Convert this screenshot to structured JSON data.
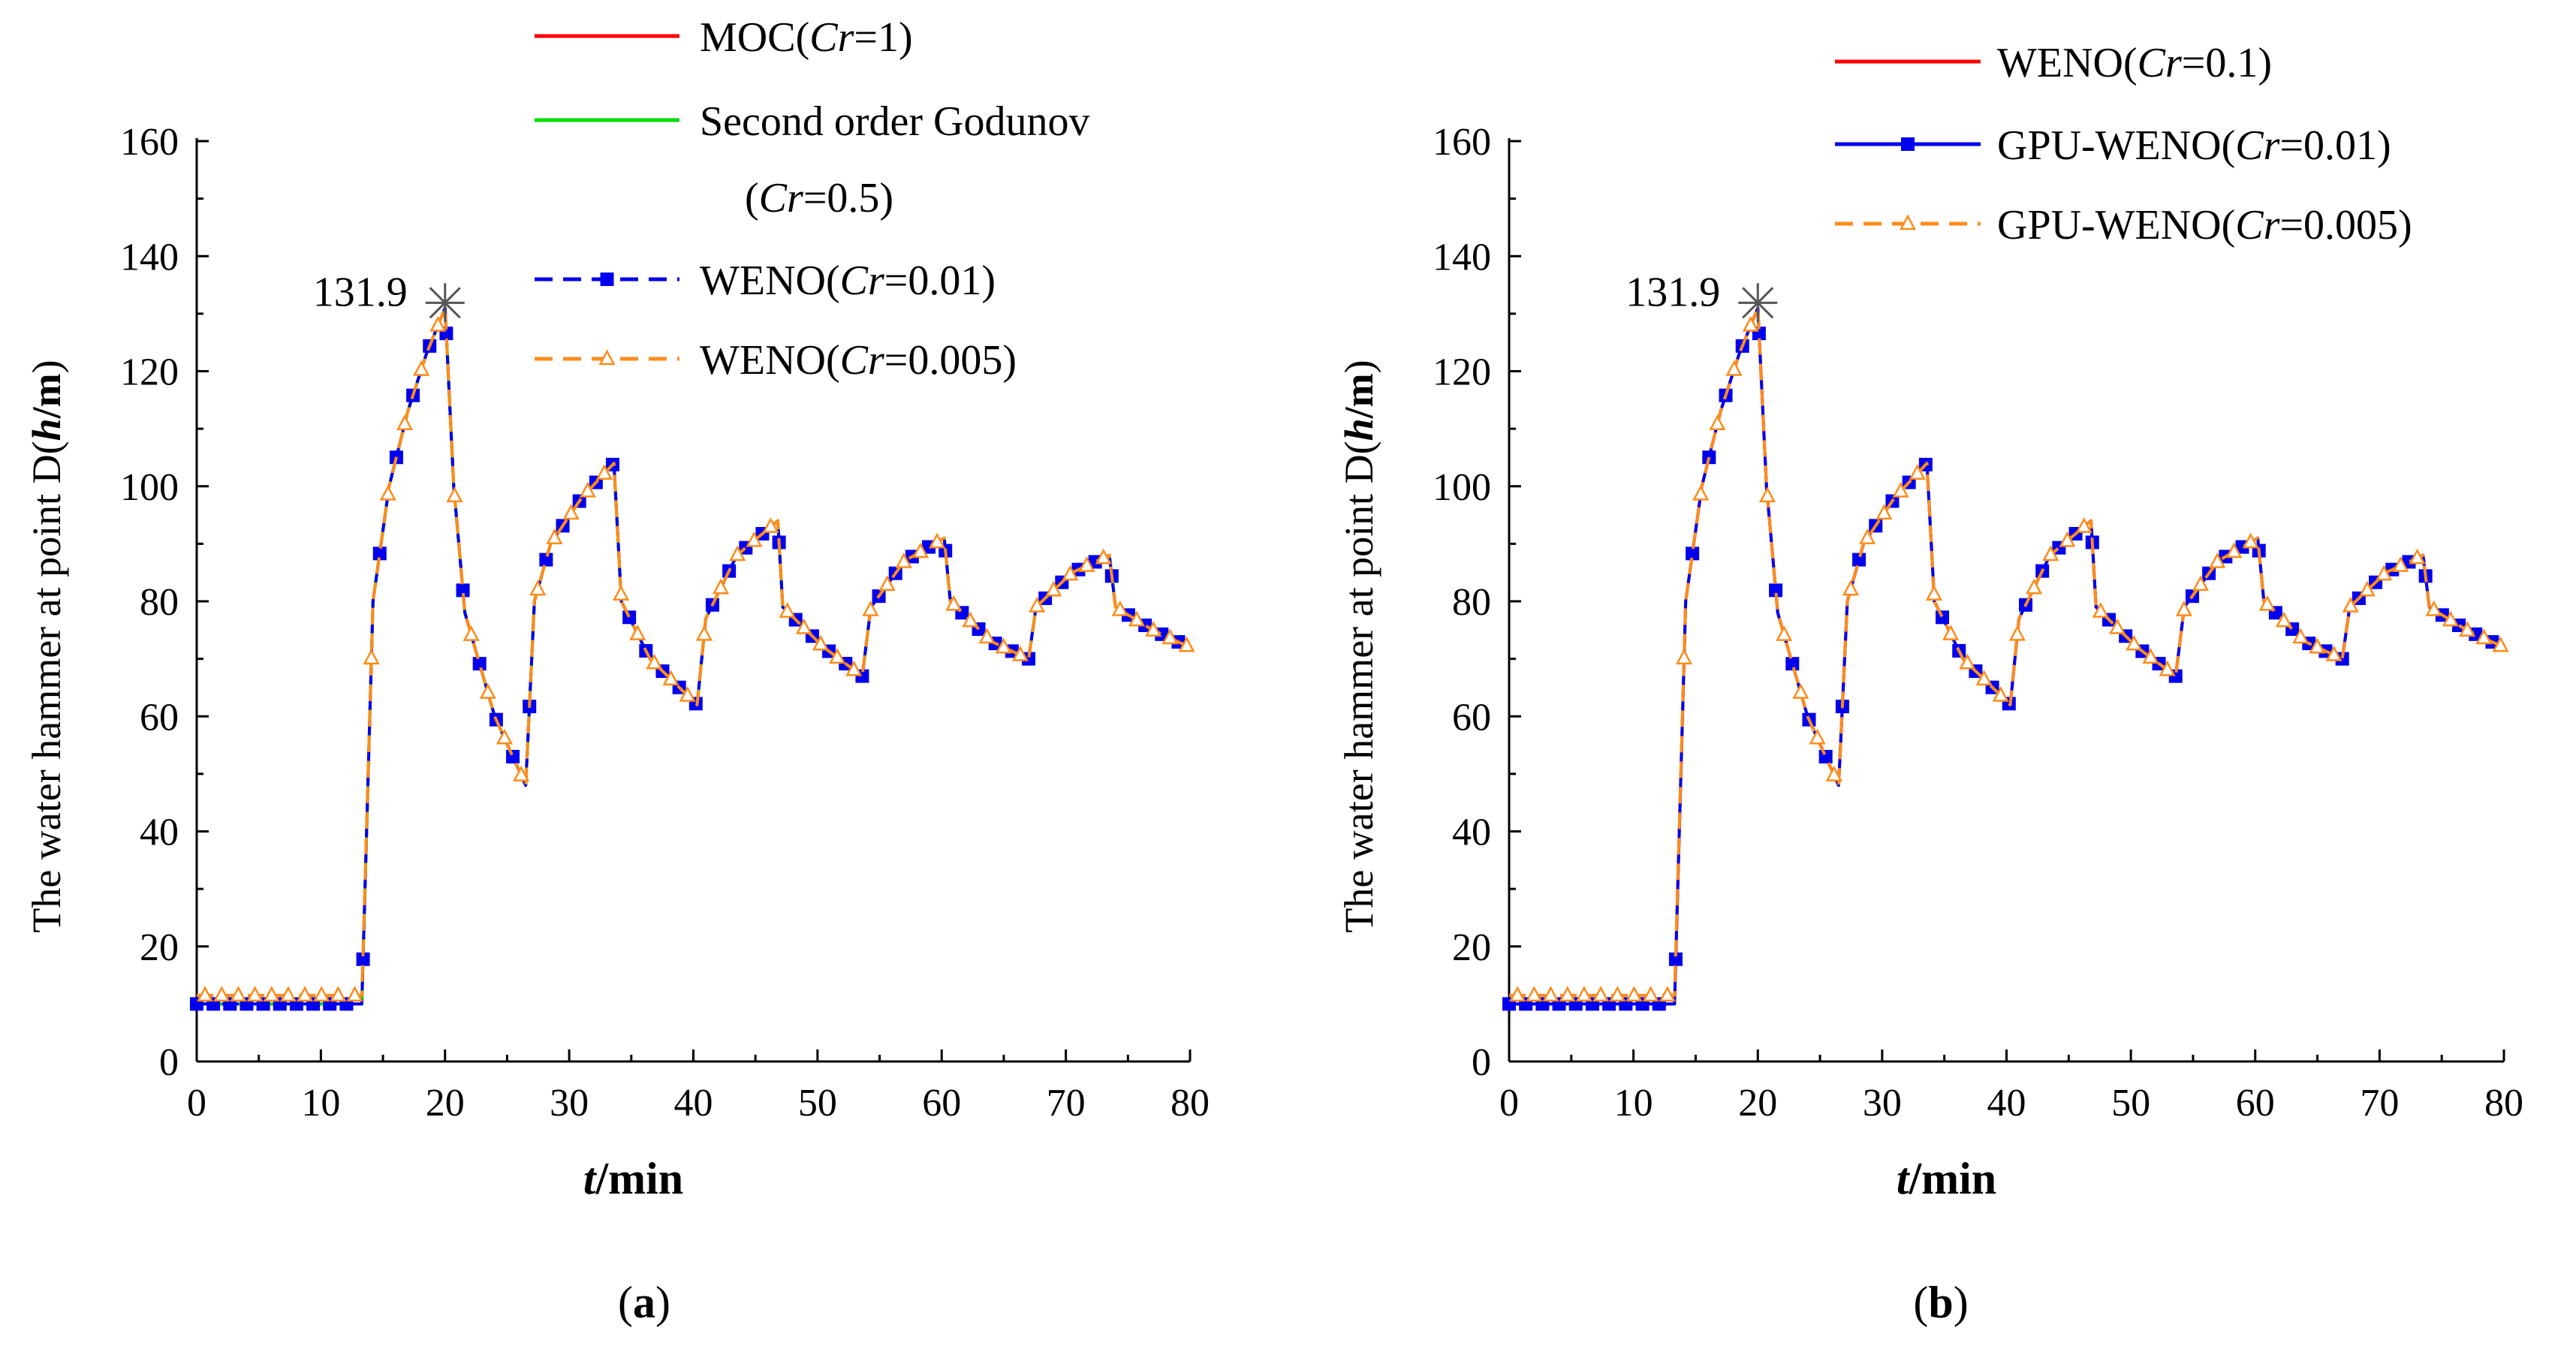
{
  "chart_data": [
    {
      "id": "a",
      "type": "line",
      "caption_open": "(",
      "caption_letter": "a",
      "caption_close": ")",
      "xlabel_italic": "t",
      "xlabel_rest": "/min",
      "ylabel_prefix": "The water hammer at point D(",
      "ylabel_h": "h",
      "ylabel_slash": "/",
      "ylabel_m": "m",
      "ylabel_close": ")",
      "xlim": [
        0,
        80
      ],
      "ylim": [
        0,
        160
      ],
      "xticks": [
        "0",
        "10",
        "20",
        "30",
        "40",
        "50",
        "60",
        "70",
        "80"
      ],
      "yticks": [
        "0",
        "20",
        "40",
        "60",
        "80",
        "100",
        "120",
        "140",
        "160"
      ],
      "annotation": {
        "text": "131.9",
        "x": 20,
        "y": 131.9
      },
      "legend": [
        {
          "parts": [
            "MOC(",
            "Cr",
            "=1)"
          ],
          "color": "#ff0000",
          "dash": "solid",
          "marker": "none"
        },
        {
          "parts": [
            "Second order Godunov",
            "",
            ""
          ],
          "color": "#00dd00",
          "dash": "solid",
          "marker": "none"
        },
        {
          "parts": [
            "(",
            "Cr",
            "=0.5)"
          ],
          "color": "",
          "dash": "none",
          "marker": "none",
          "continuation": true
        },
        {
          "parts": [
            "WENO(",
            "Cr",
            "=0.01)"
          ],
          "color": "#0000ee",
          "dash": "dashed",
          "marker": "square"
        },
        {
          "parts": [
            "WENO(",
            "Cr",
            "=0.005)"
          ],
          "color": "#ff8c1a",
          "dash": "dashed",
          "marker": "triangle"
        }
      ],
      "series": [
        {
          "name": "MOC(Cr=1)",
          "color": "#ff0000",
          "dash": "solid",
          "marker": "none",
          "x": [
            0,
            13.3,
            14.2,
            15.5,
            17,
            18.5,
            20,
            20.7,
            21.6,
            24,
            26.5,
            27.2,
            28.5,
            31,
            33.6,
            34.2,
            36.5,
            40.3,
            41,
            43.5,
            46.8,
            47.2,
            50.5,
            53.6,
            54.3,
            57,
            60.2,
            60.7,
            64,
            67,
            67.6,
            70.5,
            73.5,
            74,
            77,
            80
          ],
          "y": [
            10,
            10,
            80,
            100,
            113,
            123,
            131,
            100,
            78,
            60,
            48,
            80,
            90,
            98,
            104,
            80,
            70,
            62,
            77,
            88,
            94,
            79,
            72,
            67,
            79,
            87,
            91,
            80,
            73,
            70,
            79,
            85,
            88,
            79,
            75,
            72
          ]
        },
        {
          "name": "Second order Godunov (Cr=0.5)",
          "color": "#00dd00",
          "dash": "solid",
          "marker": "none",
          "x": [
            0,
            13.3,
            14.2,
            15.5,
            17,
            18.5,
            20,
            20.7,
            21.6,
            24,
            26.5,
            27.2,
            28.5,
            31,
            33.6,
            34.2,
            36.5,
            40.3,
            41,
            43.5,
            46.8,
            47.2,
            50.5,
            53.6,
            54.3,
            57,
            60.2,
            60.7,
            64,
            67,
            67.6,
            70.5,
            73.5,
            74,
            77,
            80
          ],
          "y": [
            10,
            10,
            80,
            100,
            113,
            123,
            131,
            100,
            78,
            60,
            48,
            80,
            90,
            98,
            104,
            80,
            70,
            62,
            77,
            88,
            94,
            79,
            72,
            67,
            79,
            87,
            91,
            80,
            73,
            70,
            79,
            85,
            88,
            79,
            75,
            72
          ]
        },
        {
          "name": "WENO(Cr=0.01)",
          "color": "#0000ee",
          "dash": "dashed",
          "marker": "square",
          "x": [
            0,
            13.3,
            14.2,
            15.5,
            17,
            18.5,
            20,
            20.7,
            21.6,
            24,
            26.5,
            27.2,
            28.5,
            31,
            33.6,
            34.2,
            36.5,
            40.3,
            41,
            43.5,
            46.8,
            47.2,
            50.5,
            53.6,
            54.3,
            57,
            60.2,
            60.7,
            64,
            67,
            67.6,
            70.5,
            73.5,
            74,
            77,
            80
          ],
          "y": [
            10,
            10,
            80,
            100,
            113,
            123,
            131,
            100,
            78,
            60,
            48,
            80,
            90,
            98,
            104,
            80,
            70,
            62,
            77,
            88,
            94,
            79,
            72,
            67,
            79,
            87,
            91,
            80,
            73,
            70,
            79,
            85,
            88,
            79,
            75,
            72
          ]
        },
        {
          "name": "WENO(Cr=0.005)",
          "color": "#ff8c1a",
          "dash": "dashed",
          "marker": "triangle",
          "x": [
            0,
            13.3,
            14.2,
            15.5,
            17,
            18.5,
            20,
            20.7,
            21.6,
            24,
            26.5,
            27.2,
            28.5,
            31,
            33.6,
            34.2,
            36.5,
            40.3,
            41,
            43.5,
            46.8,
            47.2,
            50.5,
            53.6,
            54.3,
            57,
            60.2,
            60.7,
            64,
            67,
            67.6,
            70.5,
            73.5,
            74,
            77,
            80
          ],
          "y": [
            11.5,
            11.5,
            80,
            100,
            113,
            123,
            131,
            100,
            78,
            60,
            48,
            80,
            90,
            98,
            104,
            80,
            70,
            62,
            77,
            88,
            94,
            79,
            72,
            67,
            79,
            87,
            91,
            80,
            73,
            70,
            79,
            85,
            88,
            79,
            75,
            72
          ]
        }
      ]
    },
    {
      "id": "b",
      "type": "line",
      "caption_open": "(",
      "caption_letter": "b",
      "caption_close": ")",
      "xlabel_italic": "t",
      "xlabel_rest": "/min",
      "ylabel_prefix": "The water hammer at point D(",
      "ylabel_h": "h",
      "ylabel_slash": "/",
      "ylabel_m": "m",
      "ylabel_close": ")",
      "xlim": [
        0,
        80
      ],
      "ylim": [
        0,
        160
      ],
      "xticks": [
        "0",
        "10",
        "20",
        "30",
        "40",
        "50",
        "60",
        "70",
        "80"
      ],
      "yticks": [
        "0",
        "20",
        "40",
        "60",
        "80",
        "100",
        "120",
        "140",
        "160"
      ],
      "annotation": {
        "text": "131.9",
        "x": 20,
        "y": 131.9
      },
      "legend": [
        {
          "parts": [
            "WENO(",
            "Cr",
            "=0.1)"
          ],
          "color": "#ff0000",
          "dash": "solid",
          "marker": "none"
        },
        {
          "parts": [
            "GPU-WENO(",
            "Cr",
            "=0.01)"
          ],
          "color": "#0000ee",
          "dash": "solid",
          "marker": "square"
        },
        {
          "parts": [
            "GPU-WENO(",
            "Cr",
            "=0.005)"
          ],
          "color": "#ff8c1a",
          "dash": "dashed",
          "marker": "triangle"
        }
      ],
      "series": [
        {
          "name": "WENO(Cr=0.1)",
          "color": "#ff0000",
          "dash": "solid",
          "marker": "none",
          "x": [
            0,
            13.3,
            14.2,
            15.5,
            17,
            18.5,
            20,
            20.7,
            21.6,
            24,
            26.5,
            27.2,
            28.5,
            31,
            33.6,
            34.2,
            36.5,
            40.3,
            41,
            43.5,
            46.8,
            47.2,
            50.5,
            53.6,
            54.3,
            57,
            60.2,
            60.7,
            64,
            67,
            67.6,
            70.5,
            73.5,
            74,
            77,
            80
          ],
          "y": [
            10,
            10,
            80,
            100,
            113,
            123,
            131,
            100,
            78,
            60,
            48,
            80,
            90,
            98,
            104,
            80,
            70,
            62,
            77,
            88,
            94,
            79,
            72,
            67,
            79,
            87,
            91,
            80,
            73,
            70,
            79,
            85,
            88,
            79,
            75,
            72
          ]
        },
        {
          "name": "GPU-WENO(Cr=0.01)",
          "color": "#0000ee",
          "dash": "solid",
          "marker": "square",
          "x": [
            0,
            13.3,
            14.2,
            15.5,
            17,
            18.5,
            20,
            20.7,
            21.6,
            24,
            26.5,
            27.2,
            28.5,
            31,
            33.6,
            34.2,
            36.5,
            40.3,
            41,
            43.5,
            46.8,
            47.2,
            50.5,
            53.6,
            54.3,
            57,
            60.2,
            60.7,
            64,
            67,
            67.6,
            70.5,
            73.5,
            74,
            77,
            80
          ],
          "y": [
            10,
            10,
            80,
            100,
            113,
            123,
            131,
            100,
            78,
            60,
            48,
            80,
            90,
            98,
            104,
            80,
            70,
            62,
            77,
            88,
            94,
            79,
            72,
            67,
            79,
            87,
            91,
            80,
            73,
            70,
            79,
            85,
            88,
            79,
            75,
            72
          ]
        },
        {
          "name": "GPU-WENO(Cr=0.005)",
          "color": "#ff8c1a",
          "dash": "dashed",
          "marker": "triangle",
          "x": [
            0,
            13.3,
            14.2,
            15.5,
            17,
            18.5,
            20,
            20.7,
            21.6,
            24,
            26.5,
            27.2,
            28.5,
            31,
            33.6,
            34.2,
            36.5,
            40.3,
            41,
            43.5,
            46.8,
            47.2,
            50.5,
            53.6,
            54.3,
            57,
            60.2,
            60.7,
            64,
            67,
            67.6,
            70.5,
            73.5,
            74,
            77,
            80
          ],
          "y": [
            11.5,
            11.5,
            80,
            100,
            113,
            123,
            131,
            100,
            78,
            60,
            48,
            80,
            90,
            98,
            104,
            80,
            70,
            62,
            77,
            88,
            94,
            79,
            72,
            67,
            79,
            87,
            91,
            80,
            73,
            70,
            79,
            85,
            88,
            79,
            75,
            72
          ]
        }
      ]
    }
  ]
}
